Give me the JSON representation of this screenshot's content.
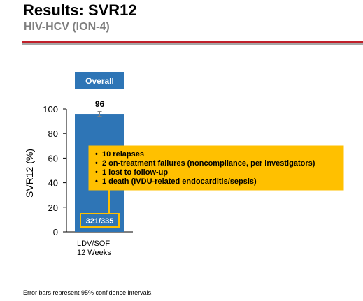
{
  "header": {
    "title": "Results: SVR12",
    "subtitle": "HIV-HCV (ION-4)"
  },
  "colors": {
    "bar": "#2e75b6",
    "accent_red": "#c0202a",
    "callout_fill": "#ffc000",
    "callout_border": "#ffc000",
    "count_box_border": "#ffc000",
    "subtitle_gray": "#7f7f7f"
  },
  "chart_data": {
    "type": "bar",
    "categories": [
      "LDV/SOF\n12 Weeks"
    ],
    "values": [
      96
    ],
    "value_labels": [
      "96"
    ],
    "error_bars": [
      [
        94,
        98
      ]
    ],
    "group_label": "Overall",
    "ylabel": "SVR12 (%)",
    "ylim": [
      0,
      100
    ],
    "yticks": [
      0,
      20,
      40,
      60,
      80,
      100
    ],
    "grid": false,
    "count_label": "321/335",
    "callout": [
      "10 relapses",
      "2 on-treatment failures (noncompliance, per investigators)",
      "1 lost to follow-up",
      "1 death (IVDU-related endocarditis/sepsis)"
    ]
  },
  "footnote": "Error bars represent 95% confidence intervals."
}
